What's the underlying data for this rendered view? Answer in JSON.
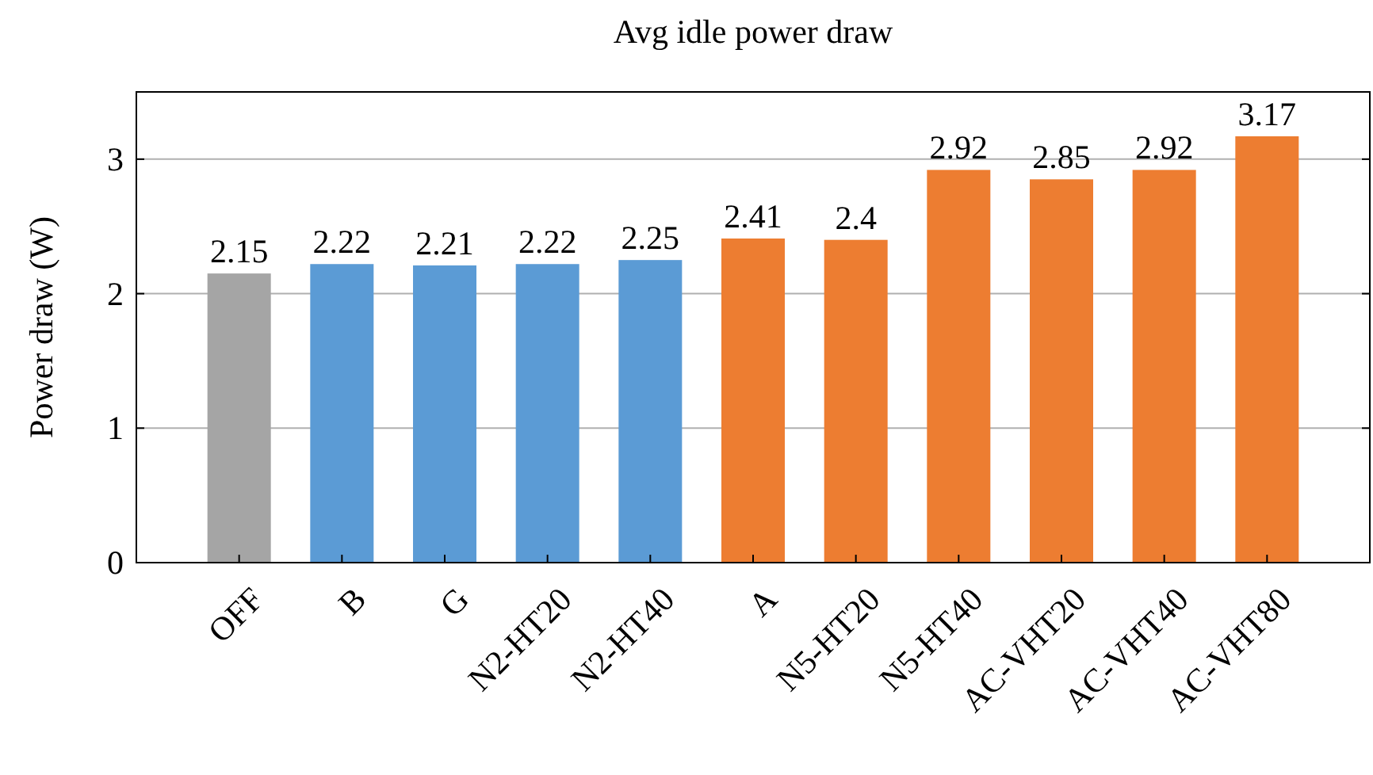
{
  "chart_data": {
    "type": "bar",
    "title": "Avg idle power draw",
    "ylabel": "Power draw (W)",
    "categories": [
      "OFF",
      "B",
      "G",
      "N2-HT20",
      "N2-HT40",
      "A",
      "N5-HT20",
      "N5-HT40",
      "AC-VHT20",
      "AC-VHT40",
      "AC-VHT80"
    ],
    "values": [
      2.15,
      2.22,
      2.21,
      2.22,
      2.25,
      2.41,
      2.4,
      2.92,
      2.85,
      2.92,
      3.17
    ],
    "colors": [
      "#a5a5a5",
      "#5b9bd5",
      "#5b9bd5",
      "#5b9bd5",
      "#5b9bd5",
      "#ed7d31",
      "#ed7d31",
      "#ed7d31",
      "#ed7d31",
      "#ed7d31",
      "#ed7d31"
    ],
    "ylim": [
      0,
      3.5
    ],
    "yticks": [
      0,
      1,
      2,
      3
    ],
    "grid": "y",
    "data_labels": true
  }
}
